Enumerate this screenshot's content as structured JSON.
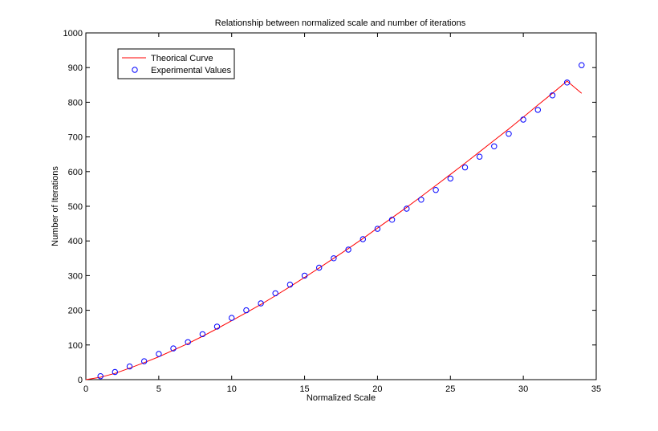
{
  "chart_data": {
    "type": "line",
    "title": "Relationship between normalized scale and number of iterations",
    "xlabel": "Normalized Scale",
    "ylabel": "Number of Iterations",
    "xlim": [
      0,
      35
    ],
    "ylim": [
      0,
      1000
    ],
    "xticks": [
      "0",
      "5",
      "10",
      "15",
      "20",
      "25",
      "30",
      "35"
    ],
    "yticks": [
      "0",
      "100",
      "200",
      "300",
      "400",
      "500",
      "600",
      "700",
      "800",
      "900",
      "1000"
    ],
    "grid": false,
    "legend_position": "top-left",
    "series": [
      {
        "name": "Theorical Curve",
        "kind": "line",
        "color": "#ff0000",
        "x": [
          0,
          1,
          2,
          3,
          4,
          5,
          6,
          7,
          8,
          9,
          10,
          11,
          12,
          13,
          14,
          15,
          16,
          17,
          18,
          19,
          20,
          21,
          22,
          23,
          24,
          25,
          26,
          27,
          28,
          29,
          30,
          31,
          32,
          33,
          34
        ],
        "y": [
          0,
          7,
          18,
          33,
          49,
          66,
          85,
          104,
          125,
          147,
          170,
          193,
          217,
          242,
          268,
          295,
          322,
          350,
          378,
          407,
          437,
          467,
          497,
          528,
          560,
          592,
          624,
          657,
          690,
          723,
          757,
          792,
          826,
          861,
          826
        ]
      },
      {
        "name": "Experimental Values",
        "kind": "scatter",
        "color": "#0000ff",
        "x": [
          1,
          2,
          3,
          4,
          5,
          6,
          7,
          8,
          9,
          10,
          11,
          12,
          13,
          14,
          15,
          16,
          17,
          18,
          19,
          20,
          21,
          22,
          23,
          24,
          25,
          26,
          27,
          28,
          29,
          30,
          31,
          32,
          33,
          34
        ],
        "y": [
          10,
          22,
          38,
          53,
          74,
          90,
          108,
          131,
          153,
          178,
          200,
          220,
          249,
          274,
          300,
          323,
          350,
          375,
          405,
          435,
          461,
          493,
          519,
          547,
          580,
          612,
          643,
          673,
          709,
          750,
          778,
          820,
          857,
          907
        ]
      }
    ]
  }
}
